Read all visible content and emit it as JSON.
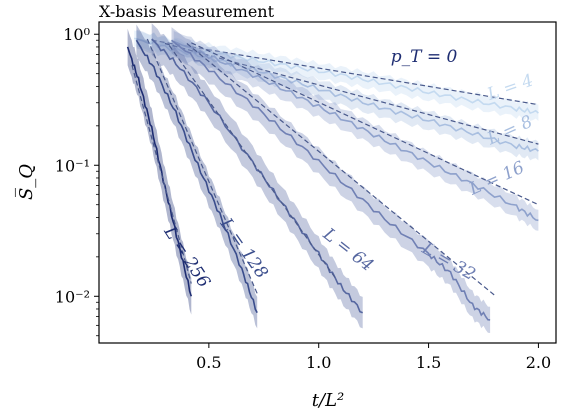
{
  "chart_data": {
    "type": "line",
    "title": "X-basis Measurement",
    "xlabel": "t/L²",
    "ylabel": "S̅_Q",
    "xlim": [
      0.0,
      2.08
    ],
    "ylim": [
      0.0044,
      1.24
    ],
    "yscale": "log",
    "xticks": [
      {
        "value": 0.5,
        "label": "0.5"
      },
      {
        "value": 1.0,
        "label": "1.0"
      },
      {
        "value": 1.5,
        "label": "1.5"
      },
      {
        "value": 2.0,
        "label": "2.0"
      }
    ],
    "yticks": [
      {
        "value": 0.01,
        "label": "10⁻²"
      },
      {
        "value": 0.1,
        "label": "10⁻¹"
      },
      {
        "value": 1.0,
        "label": "10⁰"
      }
    ],
    "grid": false,
    "legend": "none",
    "annotation": "p_T = 0",
    "series": [
      {
        "name": "L = 4",
        "color": "#c4daf0",
        "band": 0.06,
        "x": [
          0.16,
          0.3,
          0.5,
          0.7,
          0.9,
          1.1,
          1.3,
          1.5,
          1.7,
          1.9,
          2.0
        ],
        "y": [
          0.93,
          0.83,
          0.73,
          0.64,
          0.56,
          0.49,
          0.42,
          0.36,
          0.31,
          0.27,
          0.25
        ],
        "fit_x": [
          0.24,
          2.0
        ],
        "fit_y": [
          0.9,
          0.29
        ]
      },
      {
        "name": "L = 8",
        "color": "#a9bfe0",
        "band": 0.07,
        "x": [
          0.17,
          0.3,
          0.5,
          0.7,
          0.9,
          1.1,
          1.3,
          1.5,
          1.7,
          1.9,
          2.0
        ],
        "y": [
          0.92,
          0.8,
          0.66,
          0.54,
          0.43,
          0.34,
          0.27,
          0.22,
          0.175,
          0.14,
          0.128
        ],
        "fit_x": [
          0.3,
          2.0
        ],
        "fit_y": [
          0.85,
          0.145
        ]
      },
      {
        "name": "L = 16",
        "color": "#8ea1cc",
        "band": 0.08,
        "x": [
          0.34,
          0.5,
          0.7,
          0.9,
          1.1,
          1.3,
          1.5,
          1.7,
          1.9,
          2.0
        ],
        "y": [
          0.88,
          0.68,
          0.49,
          0.34,
          0.23,
          0.155,
          0.105,
          0.072,
          0.048,
          0.038
        ],
        "fit_x": [
          0.42,
          2.0
        ],
        "fit_y": [
          0.86,
          0.05
        ]
      },
      {
        "name": "L = 32",
        "color": "#7080b4",
        "band": 0.1,
        "x": [
          0.33,
          0.5,
          0.7,
          0.9,
          1.1,
          1.3,
          1.5,
          1.6,
          1.7,
          1.78
        ],
        "y": [
          0.9,
          0.54,
          0.29,
          0.15,
          0.076,
          0.039,
          0.021,
          0.015,
          0.0085,
          0.0066
        ],
        "fit_x": [
          0.4,
          1.8
        ],
        "fit_y": [
          0.85,
          0.0102
        ]
      },
      {
        "name": "L = 64",
        "color": "#5667a0",
        "band": 0.12,
        "x": [
          0.24,
          0.35,
          0.5,
          0.7,
          0.85,
          1.0,
          1.1,
          1.2
        ],
        "y": [
          0.92,
          0.6,
          0.3,
          0.105,
          0.047,
          0.021,
          0.012,
          0.0075
        ],
        "fit_x": [
          0.32,
          1.08
        ],
        "fit_y": [
          0.82,
          0.0135
        ]
      },
      {
        "name": "L = 128",
        "color": "#3a4d8c",
        "band": 0.12,
        "x": [
          0.17,
          0.25,
          0.35,
          0.45,
          0.55,
          0.65,
          0.72
        ],
        "y": [
          0.9,
          0.55,
          0.25,
          0.1,
          0.042,
          0.016,
          0.0075
        ],
        "fit_x": [
          0.22,
          0.72
        ],
        "fit_y": [
          0.92,
          0.0105
        ]
      },
      {
        "name": "L = 256",
        "color": "#1e2d72",
        "band": 0.14,
        "x": [
          0.13,
          0.18,
          0.24,
          0.3,
          0.36,
          0.42
        ],
        "y": [
          0.8,
          0.45,
          0.19,
          0.068,
          0.026,
          0.01
        ],
        "fit_x": [
          0.15,
          0.42
        ],
        "fit_y": [
          0.58,
          0.0125
        ]
      }
    ],
    "curve_labels": [
      {
        "text": "L = 4",
        "x": 1.88,
        "y": 0.36,
        "angle": -19
      },
      {
        "text": "L = 8",
        "x": 1.88,
        "y": 0.17,
        "angle": -24
      },
      {
        "text": "L = 16",
        "x": 1.82,
        "y": 0.073,
        "angle": -24
      },
      {
        "text": "L = 32",
        "x": 1.58,
        "y": 0.017,
        "angle": 30
      },
      {
        "text": "L = 64",
        "x": 1.12,
        "y": 0.021,
        "angle": 38
      },
      {
        "text": "L = 128",
        "x": 0.64,
        "y": 0.022,
        "angle": 55
      },
      {
        "text": "L = 256",
        "x": 0.38,
        "y": 0.019,
        "angle": 57
      }
    ]
  }
}
